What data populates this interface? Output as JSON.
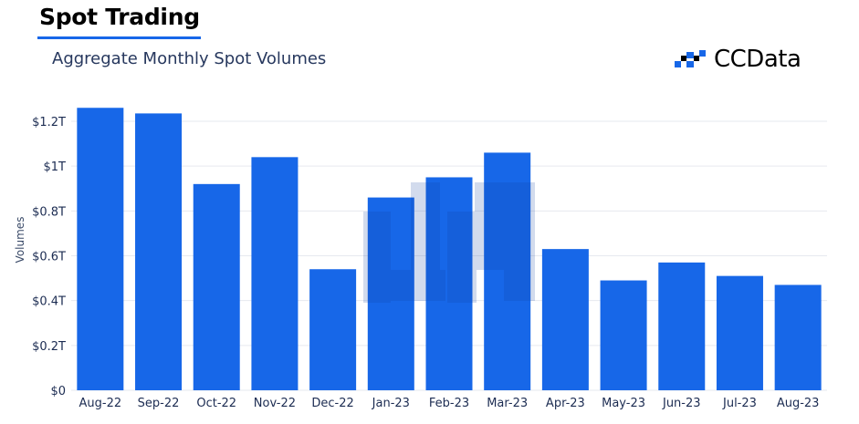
{
  "header": {
    "title": "Spot Trading",
    "subtitle": "Aggregate Monthly Spot Volumes",
    "brand": "CCData"
  },
  "colors": {
    "bar": "#1767e8",
    "accent": "#1767e8",
    "grid": "#e6e9ef",
    "watermark": "#1556c8"
  },
  "chart_data": {
    "type": "bar",
    "categories": [
      "Aug-22",
      "Sep-22",
      "Oct-22",
      "Nov-22",
      "Dec-22",
      "Jan-23",
      "Feb-23",
      "Mar-23",
      "Apr-23",
      "May-23",
      "Jun-23",
      "Jul-23",
      "Aug-23"
    ],
    "values": [
      1.26,
      1.235,
      0.92,
      1.04,
      0.54,
      0.86,
      0.95,
      1.06,
      0.63,
      0.49,
      0.57,
      0.51,
      0.47
    ],
    "unit": "trillion USD",
    "title": "Aggregate Monthly Spot Volumes",
    "xlabel": "",
    "ylabel": "Volumes",
    "ylim": [
      0,
      1.2
    ],
    "yticks": [
      0,
      0.2,
      0.4,
      0.6,
      0.8,
      1.0,
      1.2
    ],
    "ytick_labels": [
      "$0",
      "$0.2T",
      "$0.4T",
      "$0.6T",
      "$0.8T",
      "$1T",
      "$1.2T"
    ],
    "grid": true,
    "legend": "none"
  }
}
